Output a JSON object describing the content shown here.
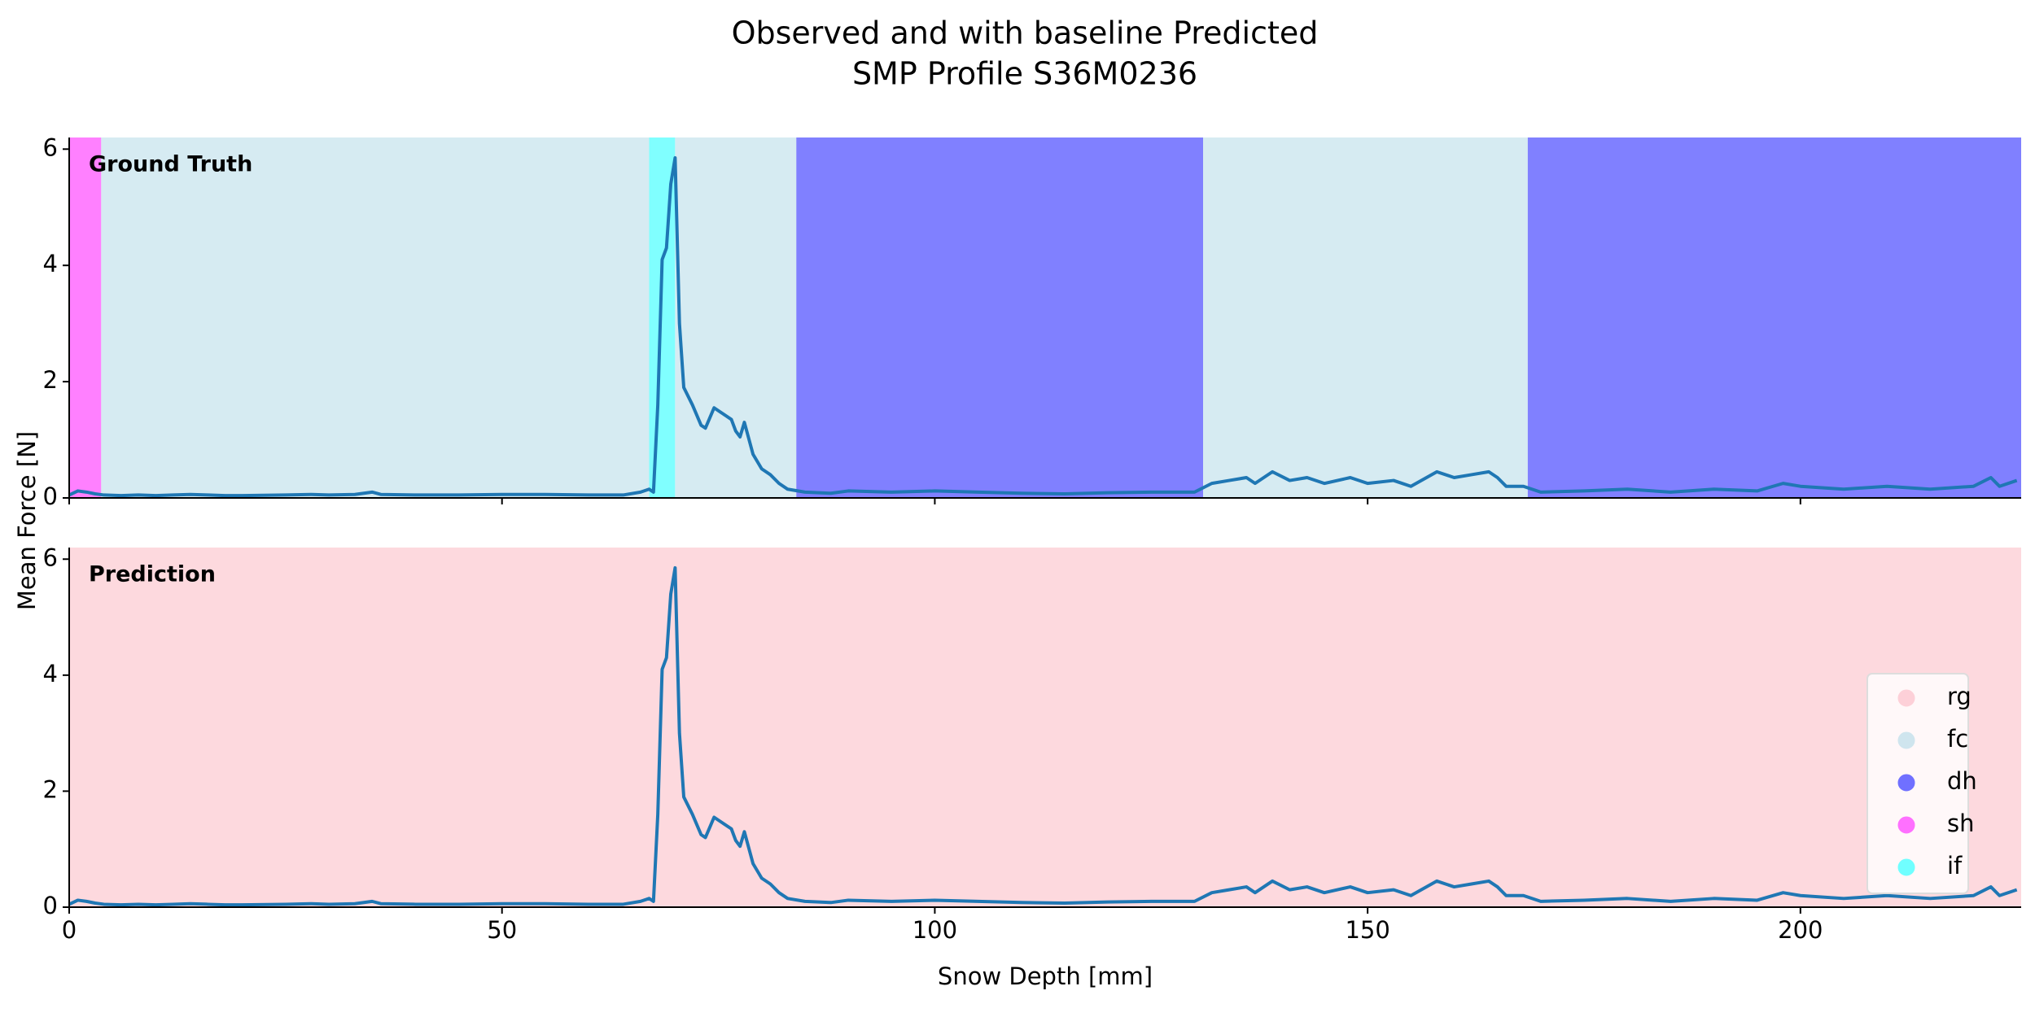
{
  "title": [
    "Observed and with baseline Predicted",
    "SMP Profile S36M0236"
  ],
  "ylabel": "Mean Force [N]",
  "xlabel": "Snow Depth [mm]",
  "chart_data": [
    {
      "type": "line",
      "panel_label": "Ground Truth",
      "xlim": [
        0,
        225.5
      ],
      "xticks": [
        0,
        50,
        100,
        150,
        200
      ],
      "ylim": [
        0,
        6.2
      ],
      "yticks": [
        0,
        2,
        4,
        6
      ],
      "segments": [
        {
          "label": "sh",
          "start": 0,
          "end": 3.7,
          "color": "#ff80ff"
        },
        {
          "label": "fc",
          "start": 3.7,
          "end": 67,
          "color": "#d6ebf2"
        },
        {
          "label": "if",
          "start": 67,
          "end": 70,
          "color": "#80ffff"
        },
        {
          "label": "fc",
          "start": 70,
          "end": 84,
          "color": "#d6ebf2"
        },
        {
          "label": "dh",
          "start": 84,
          "end": 131,
          "color": "#8080ff"
        },
        {
          "label": "fc",
          "start": 131,
          "end": 168.5,
          "color": "#d6ebf2"
        },
        {
          "label": "dh",
          "start": 168.5,
          "end": 225.5,
          "color": "#8080ff"
        }
      ],
      "series": [
        {
          "color": "#1f77b4",
          "x": [
            0,
            1,
            2,
            3,
            4,
            6,
            8,
            10,
            12,
            14,
            16,
            18,
            20,
            25,
            28,
            30,
            33,
            35,
            36,
            40,
            45,
            50,
            55,
            60,
            64,
            66,
            67,
            67.5,
            68,
            68.5,
            69,
            69.5,
            70,
            70.5,
            71,
            72,
            73,
            73.5,
            74.5,
            75.5,
            76.5,
            77,
            77.5,
            78,
            79,
            80,
            81,
            82,
            83,
            85,
            88,
            90,
            95,
            100,
            105,
            110,
            115,
            120,
            125,
            130,
            132,
            134,
            136,
            137,
            139,
            141,
            143,
            145,
            148,
            150,
            153,
            155,
            158,
            160,
            162,
            164,
            165,
            166,
            168,
            170,
            175,
            180,
            185,
            190,
            195,
            198,
            200,
            205,
            210,
            215,
            220,
            222,
            223,
            225
          ],
          "values": [
            0.05,
            0.12,
            0.1,
            0.07,
            0.05,
            0.04,
            0.05,
            0.04,
            0.05,
            0.06,
            0.05,
            0.04,
            0.04,
            0.05,
            0.06,
            0.05,
            0.06,
            0.1,
            0.06,
            0.05,
            0.05,
            0.06,
            0.06,
            0.05,
            0.05,
            0.1,
            0.15,
            0.1,
            1.6,
            4.1,
            4.3,
            5.4,
            5.85,
            3.0,
            1.9,
            1.6,
            1.25,
            1.2,
            1.55,
            1.45,
            1.35,
            1.15,
            1.05,
            1.3,
            0.75,
            0.5,
            0.4,
            0.25,
            0.15,
            0.1,
            0.08,
            0.12,
            0.1,
            0.12,
            0.1,
            0.08,
            0.07,
            0.09,
            0.1,
            0.1,
            0.25,
            0.3,
            0.35,
            0.25,
            0.45,
            0.3,
            0.35,
            0.25,
            0.35,
            0.25,
            0.3,
            0.2,
            0.45,
            0.35,
            0.4,
            0.45,
            0.35,
            0.2,
            0.2,
            0.1,
            0.12,
            0.15,
            0.1,
            0.15,
            0.12,
            0.25,
            0.2,
            0.15,
            0.2,
            0.15,
            0.2,
            0.35,
            0.2,
            0.3
          ]
        }
      ]
    },
    {
      "type": "line",
      "panel_label": "Prediction",
      "xlim": [
        0,
        225.5
      ],
      "xticks": [
        0,
        50,
        100,
        150,
        200
      ],
      "ylim": [
        0,
        6.2
      ],
      "yticks": [
        0,
        2,
        4,
        6
      ],
      "segments": [
        {
          "label": "rg",
          "start": 0,
          "end": 225.5,
          "color": "#fdd9de"
        }
      ],
      "series": [
        {
          "color": "#1f77b4",
          "x": [
            0,
            1,
            2,
            3,
            4,
            6,
            8,
            10,
            12,
            14,
            16,
            18,
            20,
            25,
            28,
            30,
            33,
            35,
            36,
            40,
            45,
            50,
            55,
            60,
            64,
            66,
            67,
            67.5,
            68,
            68.5,
            69,
            69.5,
            70,
            70.5,
            71,
            72,
            73,
            73.5,
            74.5,
            75.5,
            76.5,
            77,
            77.5,
            78,
            79,
            80,
            81,
            82,
            83,
            85,
            88,
            90,
            95,
            100,
            105,
            110,
            115,
            120,
            125,
            130,
            132,
            134,
            136,
            137,
            139,
            141,
            143,
            145,
            148,
            150,
            153,
            155,
            158,
            160,
            162,
            164,
            165,
            166,
            168,
            170,
            175,
            180,
            185,
            190,
            195,
            198,
            200,
            205,
            210,
            215,
            220,
            222,
            223,
            225
          ],
          "values": [
            0.05,
            0.12,
            0.1,
            0.07,
            0.05,
            0.04,
            0.05,
            0.04,
            0.05,
            0.06,
            0.05,
            0.04,
            0.04,
            0.05,
            0.06,
            0.05,
            0.06,
            0.1,
            0.06,
            0.05,
            0.05,
            0.06,
            0.06,
            0.05,
            0.05,
            0.1,
            0.15,
            0.1,
            1.6,
            4.1,
            4.3,
            5.4,
            5.85,
            3.0,
            1.9,
            1.6,
            1.25,
            1.2,
            1.55,
            1.45,
            1.35,
            1.15,
            1.05,
            1.3,
            0.75,
            0.5,
            0.4,
            0.25,
            0.15,
            0.1,
            0.08,
            0.12,
            0.1,
            0.12,
            0.1,
            0.08,
            0.07,
            0.09,
            0.1,
            0.1,
            0.25,
            0.3,
            0.35,
            0.25,
            0.45,
            0.3,
            0.35,
            0.25,
            0.35,
            0.25,
            0.3,
            0.2,
            0.45,
            0.35,
            0.4,
            0.45,
            0.35,
            0.2,
            0.2,
            0.1,
            0.12,
            0.15,
            0.1,
            0.15,
            0.12,
            0.25,
            0.2,
            0.15,
            0.2,
            0.15,
            0.2,
            0.35,
            0.2,
            0.3
          ]
        }
      ],
      "legend": {
        "position": "lower right",
        "entries": [
          {
            "name": "rg",
            "color": "#fdd0d8"
          },
          {
            "name": "fc",
            "color": "#cfe5ee"
          },
          {
            "name": "dh",
            "color": "#7070ff"
          },
          {
            "name": "sh",
            "color": "#ff70ff"
          },
          {
            "name": "if",
            "color": "#70ffff"
          }
        ]
      }
    }
  ]
}
